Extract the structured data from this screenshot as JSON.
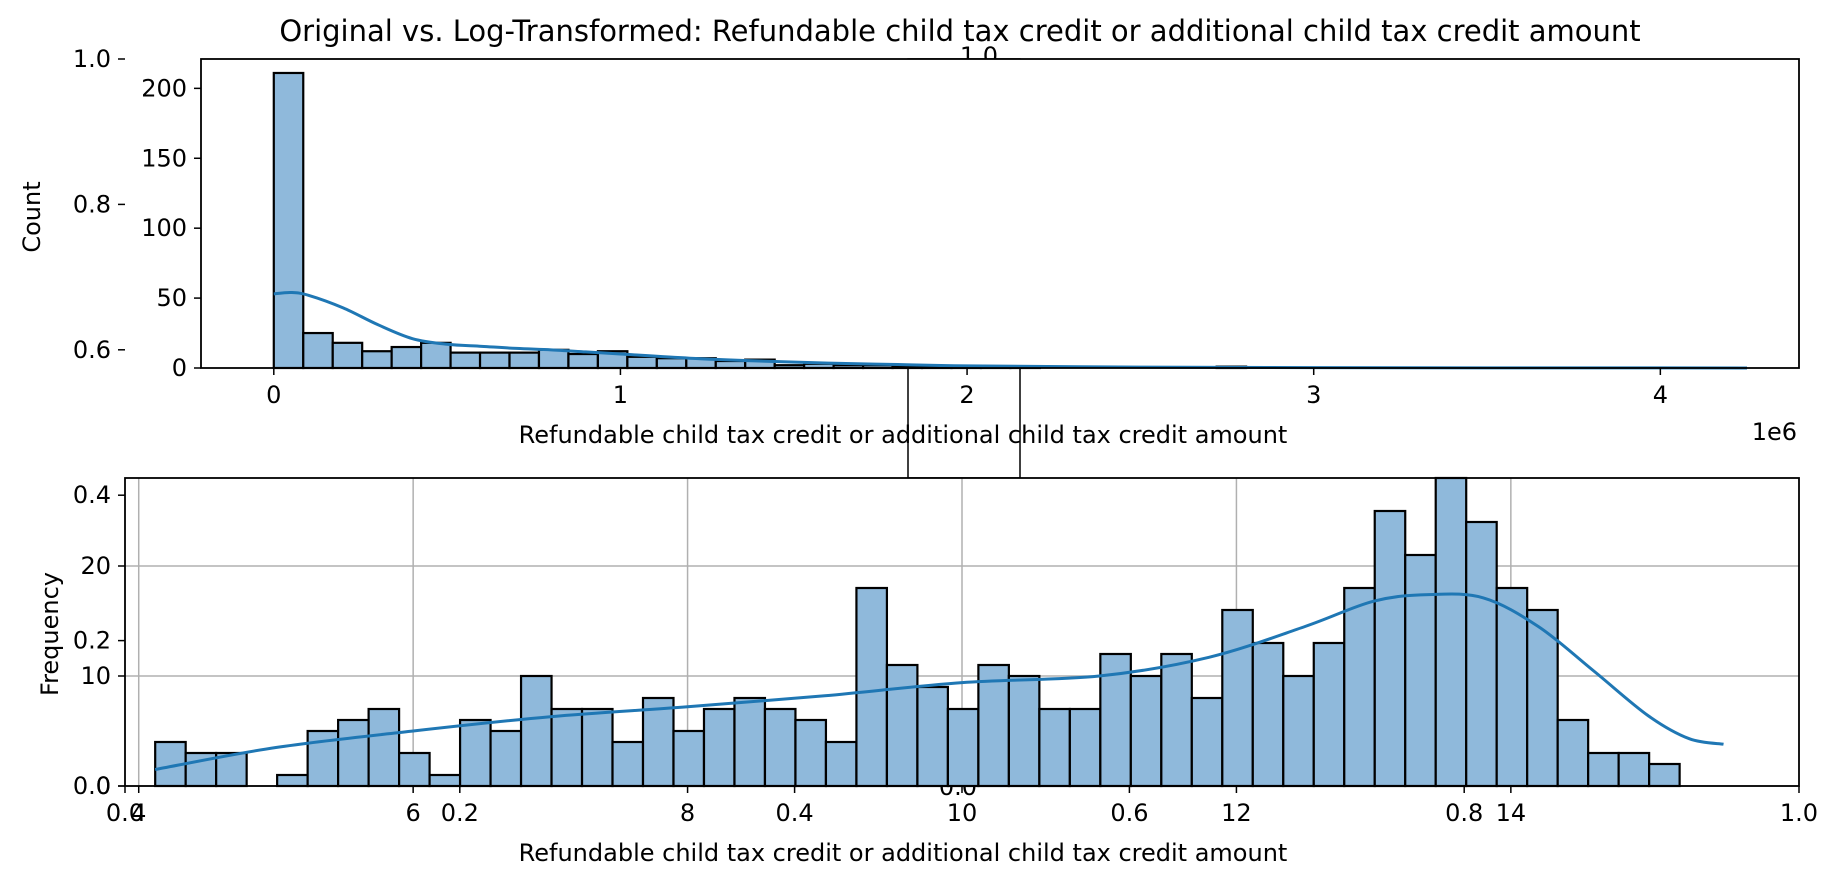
{
  "figure": {
    "title": "Original vs. Log-Transformed: Refundable child tax credit or additional child tax credit amount"
  },
  "colors": {
    "bar_fill": "#8fb9db",
    "bar_edge": "#000000",
    "kde_line": "#1f77b4",
    "grid": "#b0b0b0"
  },
  "chart_data": [
    {
      "type": "bar",
      "subtype": "histogram",
      "xlabel": "Refundable child tax credit or additional child tax credit amount",
      "ylabel": "Count",
      "x_offset_label": "1e6",
      "xlim": [
        -0.21,
        4.4
      ],
      "ylim": [
        0,
        221
      ],
      "xticks": [
        0,
        1,
        2,
        3,
        4
      ],
      "yticks": [
        0,
        50,
        100,
        150,
        200
      ],
      "bin_start": 0,
      "bin_width": 0.085,
      "values": [
        211,
        25,
        18,
        12,
        15,
        18,
        11,
        11,
        11,
        13,
        10,
        12,
        8,
        7,
        7,
        5,
        6,
        2,
        3,
        2,
        2,
        1,
        1,
        1,
        1,
        1,
        0,
        0,
        0,
        0,
        0,
        0,
        1,
        0,
        0,
        0,
        0,
        0,
        0,
        0,
        0,
        0,
        0,
        0,
        0,
        0,
        0,
        0,
        0,
        0
      ],
      "kde": {
        "x": [
          0,
          0.05,
          0.1,
          0.2,
          0.3,
          0.4,
          0.5,
          0.6,
          0.7,
          0.8,
          0.9,
          1.0,
          1.2,
          1.4,
          1.6,
          1.8,
          2.0,
          2.5,
          3.0,
          3.5,
          4.0,
          4.25
        ],
        "y": [
          53,
          54,
          52,
          43,
          31,
          21,
          17,
          15.5,
          14,
          13,
          11.5,
          10,
          7,
          5,
          3.5,
          2.5,
          1.5,
          0.6,
          0.3,
          0.1,
          0.05,
          0.03
        ]
      },
      "grid": false
    },
    {
      "type": "bar",
      "subtype": "histogram",
      "xlabel": "Refundable child tax credit or additional child tax credit amount",
      "ylabel": "Frequency",
      "xlim": [
        3.9,
        16.1
      ],
      "ylim": [
        0,
        28
      ],
      "xticks": [
        4,
        6,
        8,
        10,
        12,
        14
      ],
      "yticks": [
        0,
        10,
        20
      ],
      "bin_start": 4.12,
      "bin_width": 0.2222,
      "values": [
        4,
        3,
        3,
        0,
        1,
        5,
        6,
        7,
        3,
        1,
        6,
        5,
        10,
        7,
        7,
        4,
        8,
        5,
        7,
        8,
        7,
        6,
        4,
        18,
        11,
        9,
        7,
        11,
        10,
        7,
        7,
        12,
        10,
        12,
        8,
        16,
        13,
        10,
        13,
        18,
        25,
        21,
        28,
        24,
        18,
        16,
        6,
        3,
        3,
        2
      ],
      "kde": {
        "x": [
          4.12,
          5.0,
          6.0,
          7.0,
          8.0,
          9.0,
          10.0,
          11.0,
          11.8,
          12.5,
          13.0,
          13.4,
          13.8,
          14.2,
          14.6,
          15.0,
          15.3,
          15.55
        ],
        "y": [
          1.5,
          3.5,
          5,
          6.3,
          7.2,
          8.2,
          9.4,
          10,
          11.7,
          14.5,
          16.8,
          17.4,
          17.1,
          14.5,
          10.5,
          6.4,
          4.3,
          3.8
        ]
      },
      "grid": true
    },
    {
      "type": "line",
      "subtype": "empty-axes",
      "xlim": [
        0.0,
        1.0
      ],
      "ylim": [
        0.0,
        1.0
      ],
      "xticks": [
        "0.0",
        "0.2",
        "0.4",
        "0.6",
        "0.8",
        "1.0"
      ],
      "yticks": [
        "0.0",
        "0.2",
        "0.4",
        "0.6",
        "0.8",
        "1.0"
      ],
      "series": []
    },
    {
      "type": "line",
      "subtype": "empty-axes",
      "xlim": [
        0.0,
        1.0
      ],
      "ylim": [
        0.0,
        1.0
      ],
      "xticks": [
        "0.0"
      ],
      "yticks": [],
      "top_label": "1.0",
      "series": []
    }
  ]
}
